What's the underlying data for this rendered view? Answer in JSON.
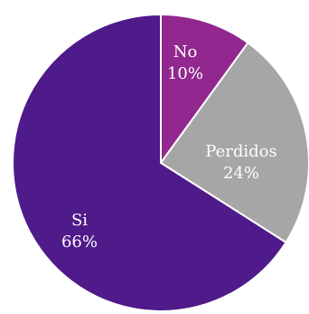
{
  "chart_data": {
    "type": "pie",
    "title": "",
    "slices": [
      {
        "label": "No",
        "value": 10,
        "value_text": "10%",
        "color": "#92278f"
      },
      {
        "label": "Perdidos",
        "value": 24,
        "value_text": "24%",
        "color": "#a6a6a6"
      },
      {
        "label": "Si",
        "value": 66,
        "value_text": "66%",
        "color": "#4f1a8a"
      }
    ],
    "start_angle": "12 o'clock",
    "direction": "clockwise",
    "slice_border_color": "#ffffff",
    "legend": "none"
  }
}
